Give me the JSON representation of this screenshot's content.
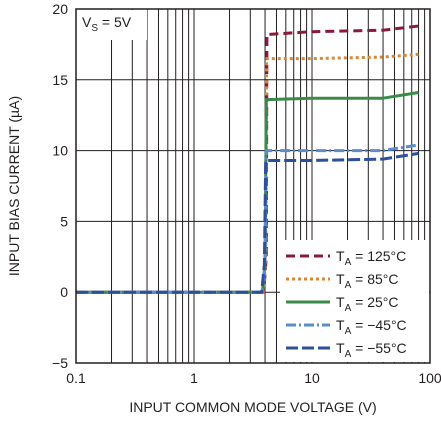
{
  "chart_data": {
    "type": "line",
    "xlabel": "INPUT COMMON MODE VOLTAGE (V)",
    "ylabel": "INPUT BIAS CURRENT (µA)",
    "x_scale": "log",
    "xlim": [
      0.1,
      100
    ],
    "ylim": [
      -5,
      20
    ],
    "x_ticks": [
      {
        "value": 0.1,
        "label": "0.1"
      },
      {
        "value": 1,
        "label": "1"
      },
      {
        "value": 10,
        "label": "10"
      },
      {
        "value": 100,
        "label": "100"
      }
    ],
    "y_ticks": [
      {
        "value": -5,
        "label": "−5"
      },
      {
        "value": 0,
        "label": "0"
      },
      {
        "value": 5,
        "label": "5"
      },
      {
        "value": 10,
        "label": "10"
      },
      {
        "value": 15,
        "label": "15"
      },
      {
        "value": 20,
        "label": "20"
      }
    ],
    "grid": true,
    "legend_position": "bottom-right",
    "annotation": {
      "main": "V",
      "sub": "S",
      "rest": " = 5V"
    },
    "series": [
      {
        "name": "125°C",
        "legend_main": "T",
        "legend_sub": "A",
        "legend_rest": " = 125°C",
        "color": "#8b1a3a",
        "dash": "9,5",
        "points": [
          [
            0.1,
            0
          ],
          [
            3.9,
            0
          ],
          [
            4.1,
            2.5
          ],
          [
            4.15,
            18.2
          ],
          [
            10,
            18.4
          ],
          [
            40,
            18.5
          ],
          [
            80,
            18.8
          ]
        ]
      },
      {
        "name": "85°C",
        "legend_main": "T",
        "legend_sub": "A",
        "legend_rest": " = 85°C",
        "color": "#d08a3a",
        "dash": "3,3",
        "points": [
          [
            0.1,
            0
          ],
          [
            3.85,
            0
          ],
          [
            4.05,
            2.0
          ],
          [
            4.12,
            16.5
          ],
          [
            10,
            16.5
          ],
          [
            40,
            16.6
          ],
          [
            80,
            16.8
          ]
        ]
      },
      {
        "name": "25°C",
        "legend_main": "T",
        "legend_sub": "A",
        "legend_rest": " = 25°C",
        "color": "#3a8a4a",
        "dash": "",
        "points": [
          [
            0.1,
            0
          ],
          [
            3.8,
            0
          ],
          [
            4.0,
            2.0
          ],
          [
            4.1,
            13.6
          ],
          [
            10,
            13.7
          ],
          [
            40,
            13.7
          ],
          [
            80,
            14.1
          ]
        ]
      },
      {
        "name": "−45°C",
        "legend_main": "T",
        "legend_sub": "A",
        "legend_rest": " = −45°C",
        "color": "#5a8ccf",
        "dash": "10,3,2,3",
        "points": [
          [
            0.1,
            0
          ],
          [
            3.8,
            0
          ],
          [
            4.0,
            2.0
          ],
          [
            4.1,
            10.0
          ],
          [
            10,
            10.0
          ],
          [
            40,
            10.0
          ],
          [
            80,
            10.4
          ]
        ]
      },
      {
        "name": "−55°C",
        "legend_main": "T",
        "legend_sub": "A",
        "legend_rest": " = −55°C",
        "color": "#2d4fa0",
        "dash": "12,4",
        "points": [
          [
            0.1,
            0
          ],
          [
            3.75,
            0
          ],
          [
            3.95,
            2.0
          ],
          [
            4.05,
            9.3
          ],
          [
            10,
            9.3
          ],
          [
            40,
            9.4
          ],
          [
            80,
            9.8
          ]
        ]
      }
    ]
  }
}
